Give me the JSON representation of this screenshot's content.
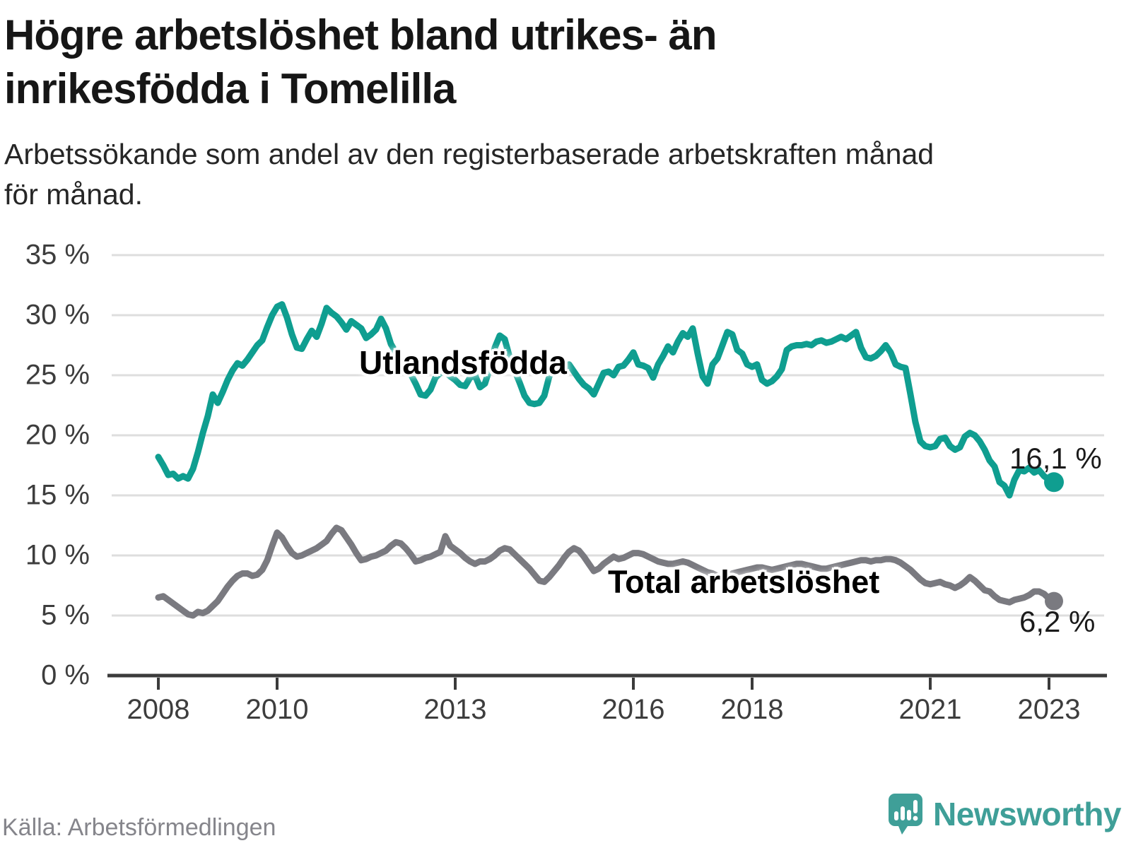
{
  "header": {
    "title_line1": "Högre arbetslöshet bland utrikes- än",
    "title_line2": "inrikesfödda i Tomelilla",
    "subtitle_line1": "Arbetssökande som andel av den registerbaserade arbetskraften månad",
    "subtitle_line2": "för månad."
  },
  "footer": {
    "source": "Källa: Arbetsförmedlingen",
    "brand": "Newsworthy"
  },
  "colors": {
    "foreign_born": "#0f9e90",
    "total": "#7a7a80",
    "gridline": "#dedede",
    "axis": "#3b3b3b",
    "brand_teal": "#3f9f98"
  },
  "chart_data": {
    "type": "line",
    "title": "Högre arbetslöshet bland utrikes- än inrikesfödda i Tomelilla",
    "subtitle": "Arbetssökande som andel av den registerbaserade arbetskraften månad för månad.",
    "source": "Källa: Arbetsförmedlingen",
    "frequency": "monthly",
    "x_start": "2008-01",
    "x_end": "2023-02",
    "ylim": [
      0,
      35
    ],
    "grid": "horizontal",
    "legend_position": "inline-annotations",
    "y_ticks": [
      {
        "label": "35 %",
        "v": 35
      },
      {
        "label": "30 %",
        "v": 30
      },
      {
        "label": "25 %",
        "v": 25
      },
      {
        "label": "20 %",
        "v": 20
      },
      {
        "label": "15 %",
        "v": 15
      },
      {
        "label": "10 %",
        "v": 10
      },
      {
        "label": "5 %",
        "v": 5
      },
      {
        "label": "0 %",
        "v": 0
      }
    ],
    "x_ticks": [
      {
        "label": "2008",
        "year": 2008
      },
      {
        "label": "2010",
        "year": 2010
      },
      {
        "label": "2013",
        "year": 2013
      },
      {
        "label": "2016",
        "year": 2016
      },
      {
        "label": "2018",
        "year": 2018
      },
      {
        "label": "2021",
        "year": 2021
      },
      {
        "label": "2023",
        "year": 2023
      }
    ],
    "series": [
      {
        "name": "Utlandsfödda",
        "color": "#0f9e90",
        "end_label": "16,1 %",
        "end_value": 16.1,
        "values": [
          18.2,
          17.5,
          16.7,
          16.8,
          16.4,
          16.6,
          16.4,
          17.2,
          18.6,
          20.2,
          21.6,
          23.4,
          22.7,
          23.6,
          24.6,
          25.4,
          26.0,
          25.8,
          26.3,
          26.9,
          27.5,
          27.9,
          29.0,
          30.0,
          30.7,
          30.9,
          29.8,
          28.4,
          27.3,
          27.2,
          28.0,
          28.7,
          28.2,
          29.3,
          30.6,
          30.2,
          29.9,
          29.4,
          28.8,
          29.5,
          29.2,
          28.9,
          28.1,
          28.4,
          28.8,
          29.7,
          28.9,
          27.6,
          26.9,
          26.1,
          25.5,
          25.1,
          24.3,
          23.4,
          23.3,
          23.8,
          24.8,
          25.2,
          25.3,
          24.9,
          24.6,
          24.2,
          24.1,
          24.8,
          25.0,
          24.0,
          24.3,
          25.6,
          27.3,
          28.3,
          28.0,
          26.5,
          25.4,
          24.4,
          23.3,
          22.7,
          22.6,
          22.7,
          23.3,
          24.9,
          25.6,
          25.9,
          25.2,
          25.9,
          25.3,
          24.7,
          24.2,
          23.9,
          23.4,
          24.3,
          25.2,
          25.3,
          25.0,
          25.7,
          25.8,
          26.3,
          26.9,
          25.9,
          25.8,
          25.6,
          24.8,
          25.9,
          26.6,
          27.4,
          26.9,
          27.8,
          28.5,
          28.2,
          28.9,
          26.8,
          24.9,
          24.3,
          25.9,
          26.4,
          27.5,
          28.6,
          28.4,
          27.1,
          26.8,
          25.9,
          25.7,
          25.9,
          24.6,
          24.3,
          24.5,
          24.9,
          25.5,
          27.1,
          27.4,
          27.5,
          27.5,
          27.6,
          27.5,
          27.8,
          27.9,
          27.7,
          27.8,
          28.0,
          28.2,
          28.0,
          28.3,
          28.6,
          27.3,
          26.5,
          26.4,
          26.6,
          27.0,
          27.5,
          26.9,
          25.9,
          25.7,
          25.6,
          23.4,
          21.1,
          19.5,
          19.1,
          19.0,
          19.1,
          19.7,
          19.8,
          19.1,
          18.8,
          19.0,
          19.9,
          20.2,
          20.0,
          19.5,
          18.8,
          17.9,
          17.4,
          16.1,
          15.8,
          15.0,
          16.3,
          17.1,
          17.0,
          17.3,
          16.9,
          17.1,
          16.6,
          16.3,
          16.1
        ]
      },
      {
        "name": "Total arbetslöshet",
        "color": "#7a7a80",
        "end_label": "6,2 %",
        "end_value": 6.2,
        "values": [
          6.5,
          6.6,
          6.3,
          6.0,
          5.7,
          5.4,
          5.1,
          5.0,
          5.3,
          5.2,
          5.4,
          5.8,
          6.2,
          6.8,
          7.4,
          7.9,
          8.3,
          8.5,
          8.5,
          8.3,
          8.4,
          8.8,
          9.6,
          10.8,
          11.9,
          11.5,
          10.8,
          10.2,
          9.9,
          10.0,
          10.2,
          10.4,
          10.6,
          10.9,
          11.2,
          11.8,
          12.3,
          12.1,
          11.5,
          10.9,
          10.2,
          9.6,
          9.7,
          9.9,
          10.0,
          10.2,
          10.4,
          10.8,
          11.1,
          11.0,
          10.6,
          10.1,
          9.5,
          9.6,
          9.8,
          9.9,
          10.1,
          10.3,
          11.6,
          10.8,
          10.5,
          10.2,
          9.8,
          9.5,
          9.3,
          9.5,
          9.5,
          9.7,
          10.0,
          10.4,
          10.6,
          10.5,
          10.1,
          9.7,
          9.3,
          8.9,
          8.4,
          7.9,
          7.8,
          8.2,
          8.7,
          9.2,
          9.8,
          10.3,
          10.6,
          10.4,
          9.9,
          9.3,
          8.7,
          8.9,
          9.3,
          9.6,
          9.9,
          9.7,
          9.8,
          10.0,
          10.2,
          10.2,
          10.1,
          9.9,
          9.7,
          9.5,
          9.4,
          9.3,
          9.3,
          9.4,
          9.5,
          9.4,
          9.2,
          9.0,
          8.8,
          8.6,
          8.5,
          8.3,
          8.2,
          8.3,
          8.5,
          8.6,
          8.7,
          8.8,
          8.9,
          9.0,
          9.0,
          8.9,
          8.8,
          8.9,
          9.0,
          9.1,
          9.2,
          9.3,
          9.3,
          9.2,
          9.1,
          9.0,
          8.9,
          8.9,
          9.0,
          9.1,
          9.2,
          9.3,
          9.4,
          9.5,
          9.6,
          9.6,
          9.5,
          9.6,
          9.6,
          9.7,
          9.7,
          9.6,
          9.4,
          9.1,
          8.8,
          8.4,
          8.0,
          7.7,
          7.6,
          7.7,
          7.8,
          7.6,
          7.5,
          7.3,
          7.5,
          7.8,
          8.2,
          7.9,
          7.5,
          7.1,
          7.0,
          6.6,
          6.3,
          6.2,
          6.1,
          6.3,
          6.4,
          6.5,
          6.7,
          7.0,
          7.0,
          6.8,
          6.4,
          6.2
        ]
      }
    ]
  }
}
